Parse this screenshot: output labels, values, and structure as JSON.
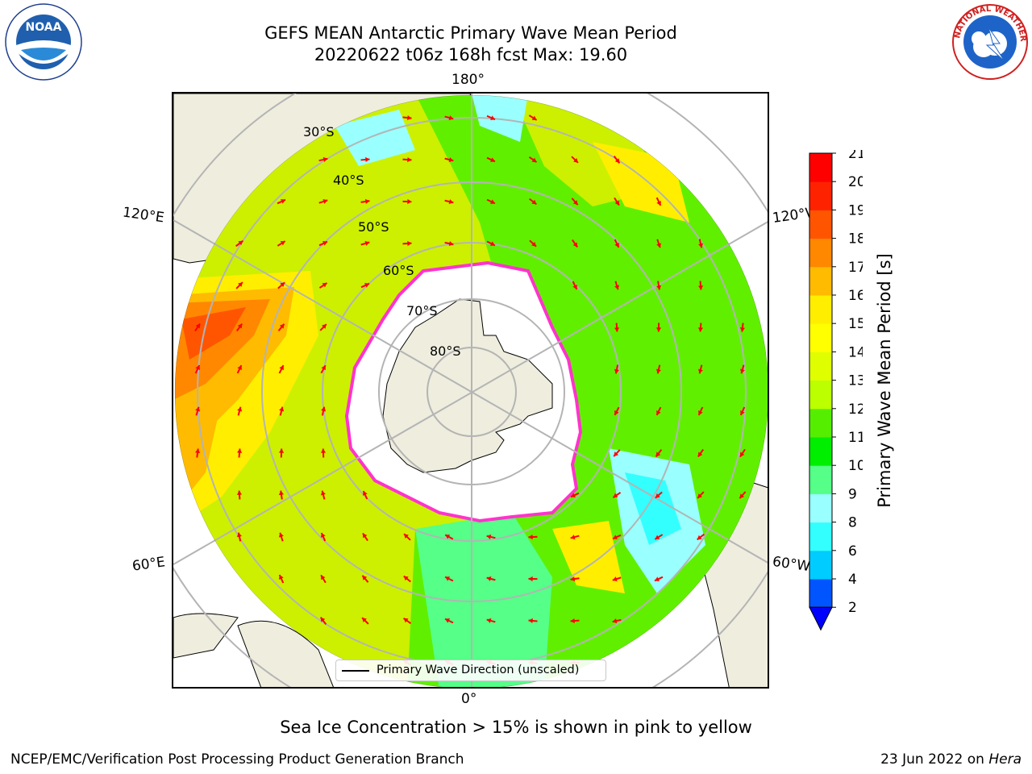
{
  "header": {
    "title_line1": "GEFS MEAN Antarctic Primary Wave Mean Period",
    "title_line2": "20220622 t06z 168h fcst   Max: 19.60"
  },
  "logos": {
    "noaa": {
      "text": "NOAA",
      "ring_text": "NATIONAL OCEANIC AND ATMOSPHERIC ADMINISTRATION · U.S. DEPARTMENT OF COMMERCE",
      "icon": "noaa-logo-icon"
    },
    "nws": {
      "ring_text": "NATIONAL WEATHER SERVICE",
      "icon": "nws-logo-icon"
    }
  },
  "map": {
    "projection": "south-polar-stereographic",
    "lon_labels": {
      "top": "180°",
      "bottom": "0°",
      "left_upper": "120°E",
      "left_lower": "60°E",
      "right_upper": "120°W",
      "right_lower": "60°W"
    },
    "lat_labels": [
      "30°S",
      "40°S",
      "50°S",
      "60°S",
      "70°S",
      "80°S"
    ],
    "legend_label": "Primary Wave Direction (unscaled)",
    "colors": {
      "land": "#efedde",
      "sea_ice": "#ffffff",
      "arrow": "#ff0000",
      "ice_edge": "#ff33cc",
      "grid": "#b4b4b4"
    }
  },
  "colorbar": {
    "title": "Primary Wave Mean Period [s]",
    "ticks": [
      "2",
      "4",
      "6",
      "8",
      "9",
      "10",
      "11",
      "12",
      "13",
      "14",
      "15",
      "16",
      "17",
      "18",
      "19",
      "20",
      "21"
    ],
    "extend": "min",
    "colors": [
      "#0055ff",
      "#00ccff",
      "#33ffff",
      "#99ffff",
      "#55ff88",
      "#00ee00",
      "#55ee00",
      "#bbff00",
      "#dfff00",
      "#ffff00",
      "#ffee00",
      "#ffbb00",
      "#ff8800",
      "#ff5500",
      "#ff2200",
      "#ff0000"
    ],
    "under_color": "#0000ff"
  },
  "annotation": "Sea Ice Concentration > 15% is shown in pink to yellow",
  "footer": {
    "left": "NCEP/EMC/Verification Post Processing Product Generation Branch",
    "right_date": "23 Jun 2022 on ",
    "right_host": "Hera"
  }
}
